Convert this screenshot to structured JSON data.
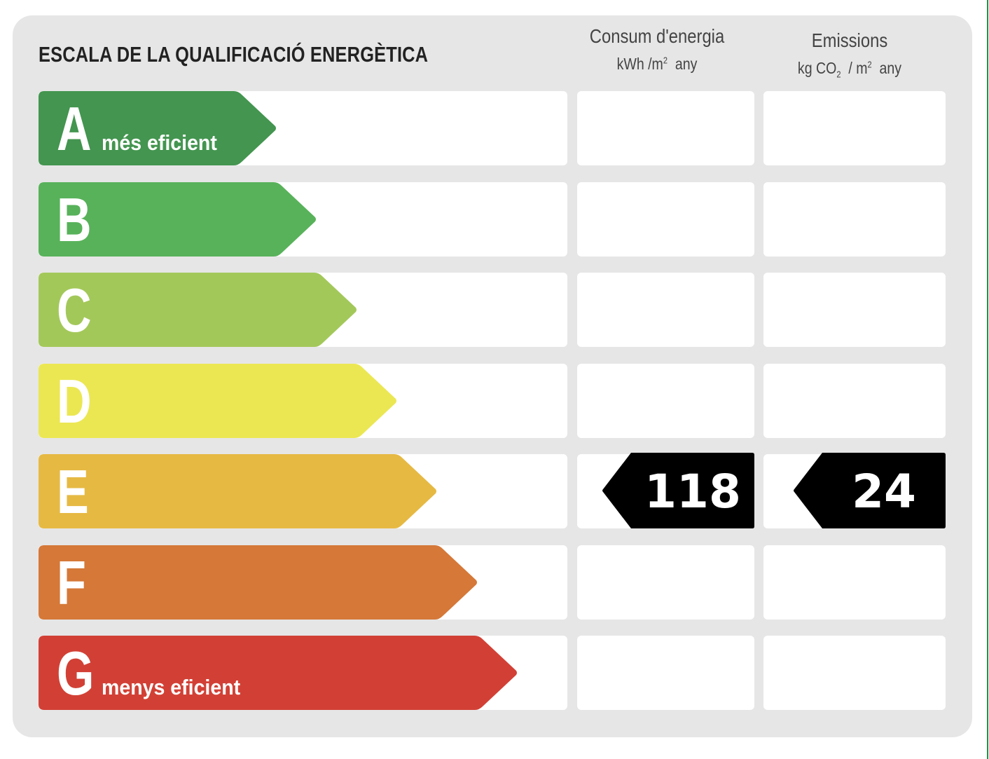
{
  "title": "ESCALA DE LA QUALIFICACIÓ ENERGÈTICA",
  "columns": {
    "consumption": {
      "title": "Consum d'energia",
      "unit_main": "kWh /m",
      "unit_sup": "2",
      "unit_tail": "any"
    },
    "emissions": {
      "title": "Emissions",
      "unit_pre": "kg CO",
      "unit_sub": "2",
      "unit_mid": "/ m",
      "unit_sup": "2",
      "unit_tail": "any"
    }
  },
  "classes": [
    {
      "letter": "A",
      "label": "més eficient",
      "color": "#43954f"
    },
    {
      "letter": "B",
      "label": "",
      "color": "#58b25a"
    },
    {
      "letter": "C",
      "label": "",
      "color": "#a3c85a"
    },
    {
      "letter": "D",
      "label": "",
      "color": "#ebe753"
    },
    {
      "letter": "E",
      "label": "",
      "color": "#e6b943"
    },
    {
      "letter": "F",
      "label": "",
      "color": "#d57838"
    },
    {
      "letter": "G",
      "label": "menys eficient",
      "color": "#d24035"
    }
  ],
  "rating": {
    "class": "E",
    "consumption_value": "118",
    "emissions_value": "24",
    "marker_color": "#000000"
  }
}
